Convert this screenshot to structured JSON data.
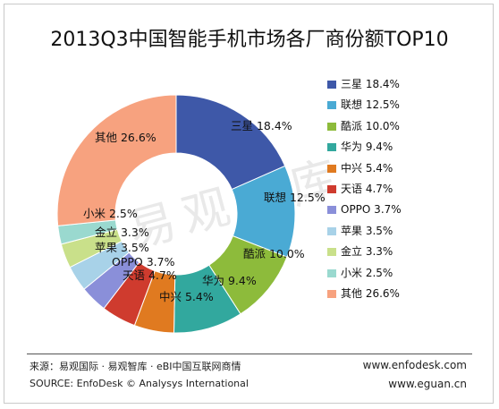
{
  "chart_data": {
    "type": "pie",
    "donut": true,
    "title": "2013Q3中国智能手机市场各厂商份额TOP10",
    "legend_position": "right",
    "slices": [
      {
        "label": "三星",
        "value": 18.4,
        "value_text": "18.4%",
        "color": "#3e58a8"
      },
      {
        "label": "联想",
        "value": 12.5,
        "value_text": "12.5%",
        "color": "#4aaad4"
      },
      {
        "label": "酷派",
        "value": 10.0,
        "value_text": "10.0%",
        "color": "#8dbb3b"
      },
      {
        "label": "华为",
        "value": 9.4,
        "value_text": "9.4%",
        "color": "#32a89e"
      },
      {
        "label": "中兴",
        "value": 5.4,
        "value_text": "5.4%",
        "color": "#e07a20"
      },
      {
        "label": "天语",
        "value": 4.7,
        "value_text": "4.7%",
        "color": "#cf3b2e"
      },
      {
        "label": "OPPO",
        "value": 3.7,
        "value_text": "3.7%",
        "color": "#8a8fd9"
      },
      {
        "label": "苹果",
        "value": 3.5,
        "value_text": "3.5%",
        "color": "#a8d2e8"
      },
      {
        "label": "金立",
        "value": 3.3,
        "value_text": "3.3%",
        "color": "#c9e08a"
      },
      {
        "label": "小米",
        "value": 2.5,
        "value_text": "2.5%",
        "color": "#9ad9cf"
      },
      {
        "label": "其他",
        "value": 26.6,
        "value_text": "26.6%",
        "color": "#f7a27f"
      }
    ]
  },
  "watermark": "易观智库",
  "footer": {
    "source_cn": "来源：易观国际 · 易观智库 · eBI中国互联网商情",
    "source_en": "SOURCE: EnfoDesk © Analysys International",
    "site1": "www.enfodesk.com",
    "site2": "www.eguan.cn"
  }
}
